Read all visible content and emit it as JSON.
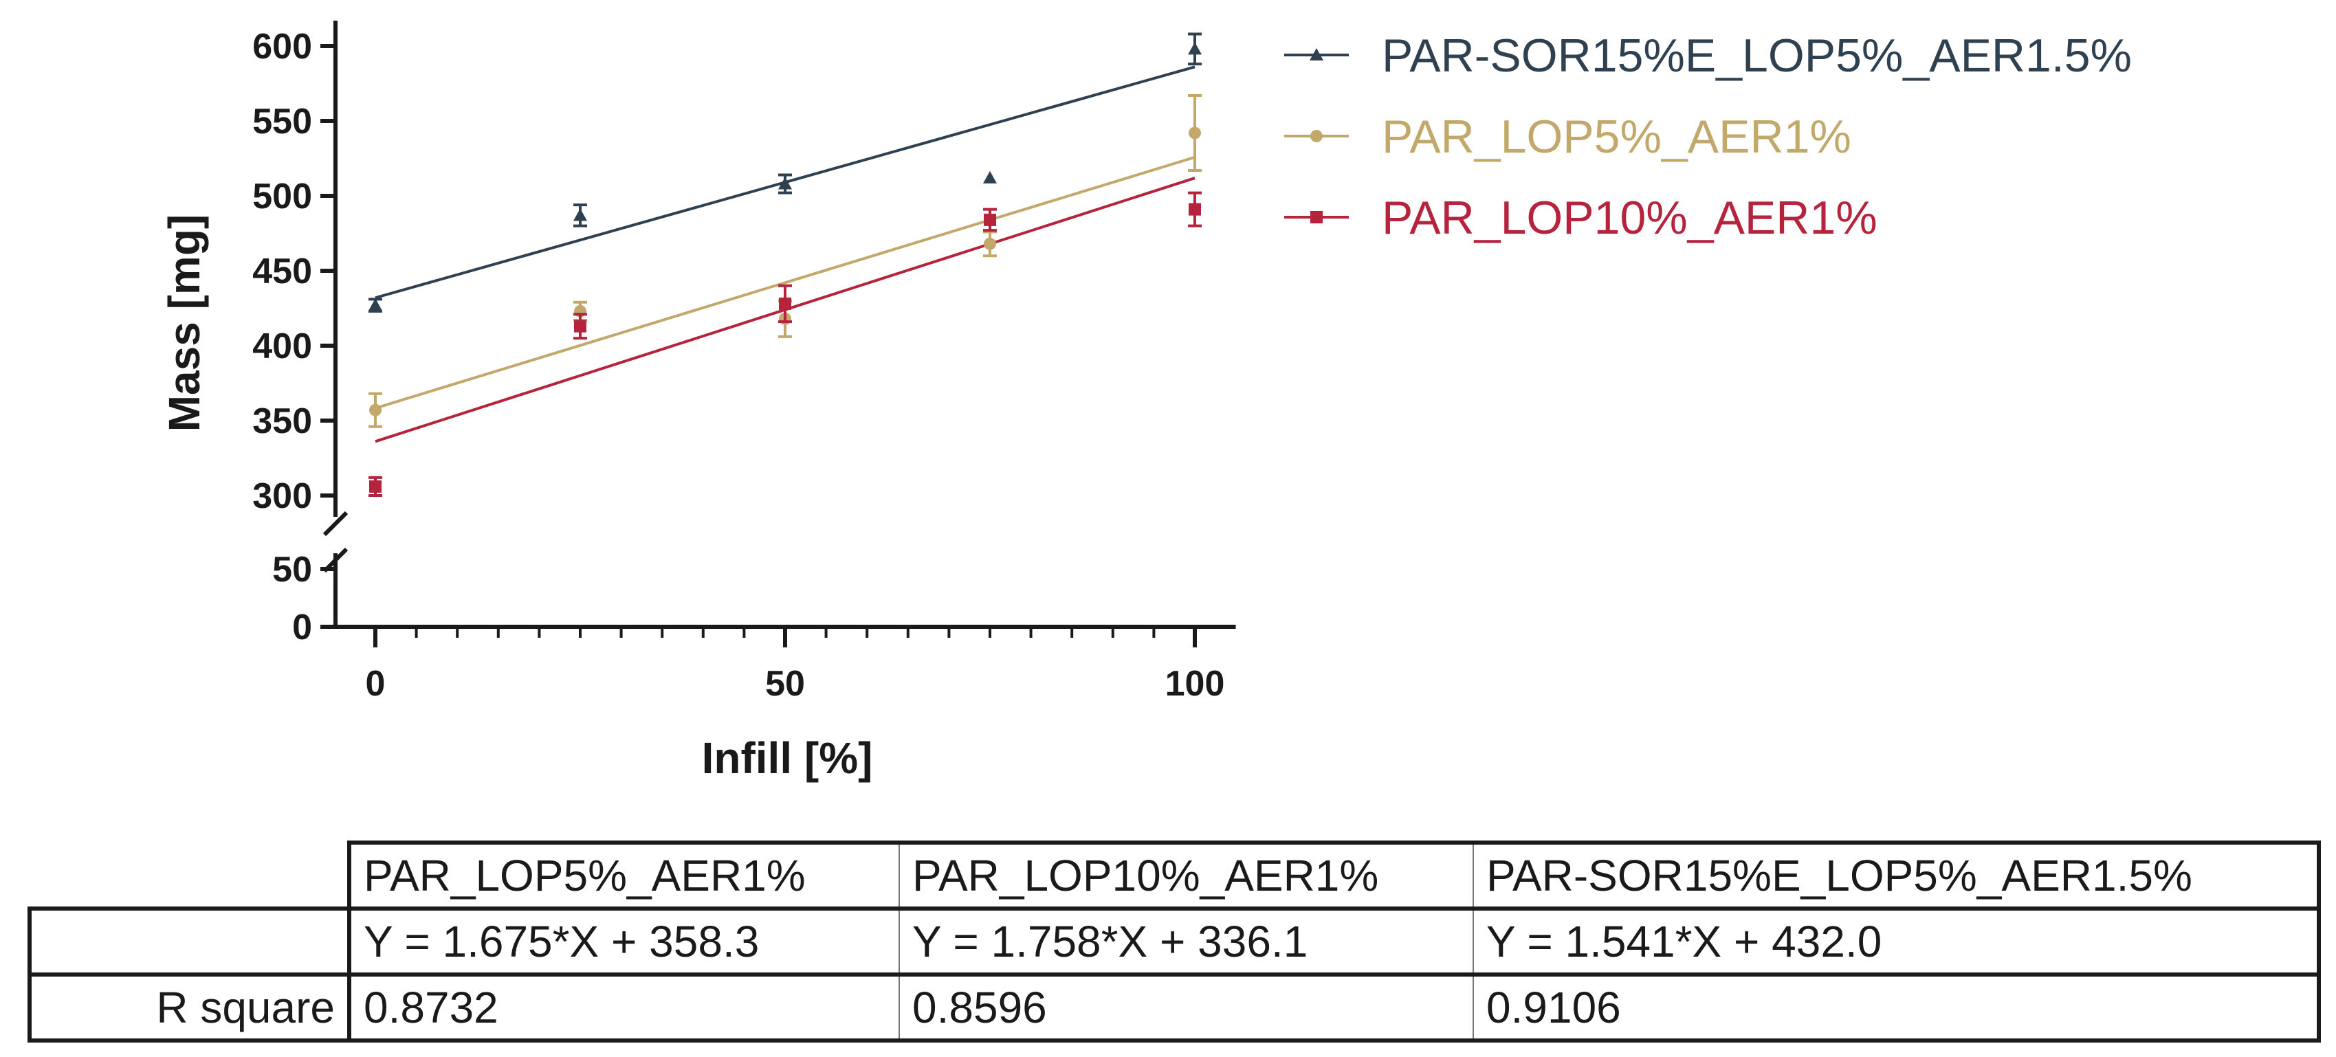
{
  "chart_data": {
    "type": "scatter",
    "title": "",
    "xlabel": "Infill [%]",
    "ylabel": "Mass [mg]",
    "xlim": [
      -4,
      105
    ],
    "xticks": [
      0,
      50,
      100
    ],
    "xticks_minor": [
      5,
      10,
      15,
      20,
      25,
      30,
      35,
      40,
      45,
      55,
      60,
      65,
      70,
      75,
      80,
      85,
      90,
      95
    ],
    "ylim_lower": [
      0,
      60
    ],
    "ylim_upper": [
      285,
      615
    ],
    "y_axis_broken": true,
    "yticks_lower": [
      0,
      50
    ],
    "yticks_upper": [
      300,
      350,
      400,
      450,
      500,
      550,
      600
    ],
    "grid": false,
    "legend_position": "top-right",
    "series": [
      {
        "name": "PAR-SOR15%E_LOP5%_AER1.5%",
        "color": "#2f4150",
        "marker": "triangle",
        "x": [
          0,
          25,
          50,
          75,
          100
        ],
        "y": [
          427,
          487,
          508,
          512,
          598
        ],
        "err": [
          4,
          7,
          6,
          0,
          10
        ],
        "fit": {
          "slope": 1.541,
          "intercept": 432.0
        }
      },
      {
        "name": "PAR_LOP5%_AER1%",
        "color": "#c2a86b",
        "marker": "circle",
        "x": [
          0,
          25,
          50,
          75,
          100
        ],
        "y": [
          357,
          423,
          418,
          468,
          542
        ],
        "err": [
          11,
          6,
          12,
          8,
          25
        ],
        "fit": {
          "slope": 1.675,
          "intercept": 358.3
        }
      },
      {
        "name": "PAR_LOP10%_AER1%",
        "color": "#b5233c",
        "marker": "square",
        "x": [
          0,
          25,
          50,
          75,
          100
        ],
        "y": [
          306,
          413,
          428,
          484,
          491
        ],
        "err": [
          6,
          8,
          12,
          7,
          11
        ],
        "fit": {
          "slope": 1.758,
          "intercept": 336.1
        }
      }
    ]
  },
  "table": {
    "row_label_blank": "",
    "columns": [
      "PAR_LOP5%_AER1%",
      "PAR_LOP10%_AER1%",
      "PAR-SOR15%E_LOP5%_AER1.5%"
    ],
    "equations": [
      "Y = 1.675*X + 358.3",
      "Y = 1.758*X + 336.1",
      "Y = 1.541*X + 432.0"
    ],
    "r_square_label": "R square",
    "r_square": [
      "0.8732",
      "0.8596",
      "0.9106"
    ]
  }
}
